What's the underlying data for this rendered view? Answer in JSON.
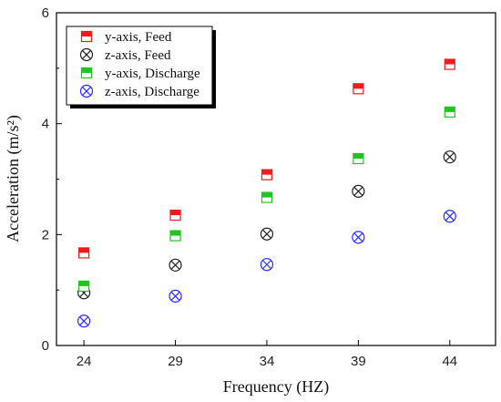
{
  "chart_data": {
    "type": "scatter",
    "xlabel": "Frequency (HZ)",
    "ylabel": "Acceleration (m/s²)",
    "xlim": [
      22.5,
      46.5
    ],
    "ylim": [
      0,
      6
    ],
    "x_ticks": [
      24,
      29,
      34,
      39,
      44
    ],
    "y_ticks": [
      0,
      2,
      4,
      6
    ],
    "grid": false,
    "legend_position": "top-left",
    "x": [
      24,
      29,
      34,
      39,
      44
    ],
    "series": [
      {
        "name": "y-axis, Feed",
        "marker": "half-filled-square",
        "color": "#ee1c1c",
        "values": [
          1.67,
          2.35,
          3.08,
          4.63,
          5.07
        ]
      },
      {
        "name": "z-axis, Feed",
        "marker": "circle-x",
        "color": "#222222",
        "values": [
          0.95,
          1.45,
          2.01,
          2.78,
          3.4
        ]
      },
      {
        "name": "y-axis, Discharge",
        "marker": "half-filled-square",
        "color": "#21c521",
        "values": [
          1.07,
          1.98,
          2.67,
          3.37,
          4.21
        ]
      },
      {
        "name": "z-axis, Discharge",
        "marker": "circle-x",
        "color": "#2b2bff",
        "values": [
          0.44,
          0.89,
          1.46,
          1.95,
          2.33
        ]
      }
    ]
  }
}
